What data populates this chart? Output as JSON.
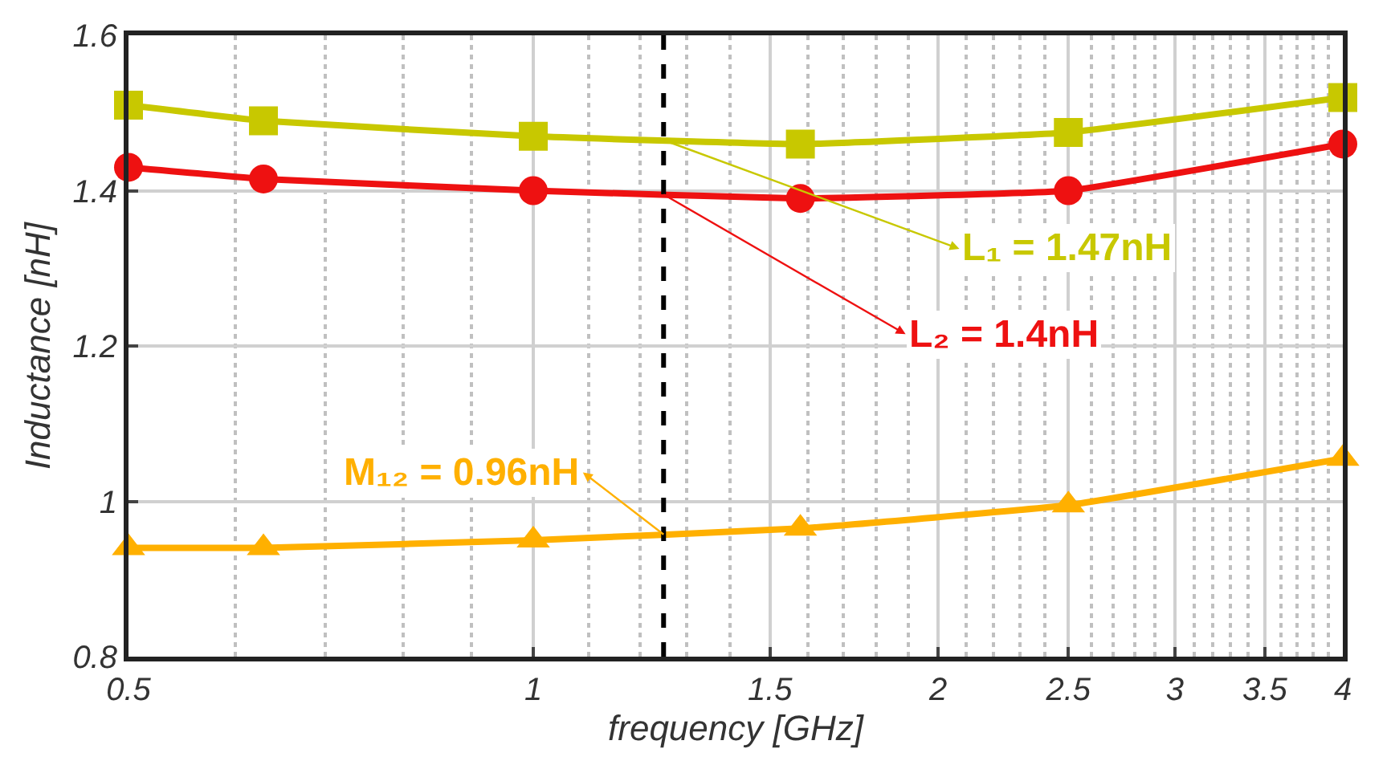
{
  "chart_data": {
    "type": "line",
    "xlabel": "frequency [GHz]",
    "ylabel": "Inductance [nH]",
    "log": "x",
    "x": [
      0.5,
      0.63,
      1,
      1.58,
      2.5,
      4
    ],
    "series": [
      {
        "color": "#c8c800",
        "marker": "square",
        "values": [
          1.51,
          1.49,
          1.47,
          1.46,
          1.475,
          1.52
        ]
      },
      {
        "color": "#ee1111",
        "marker": "circle",
        "values": [
          1.43,
          1.415,
          1.4,
          1.39,
          1.4,
          1.46
        ]
      },
      {
        "color": "#ffb000",
        "marker": "triangle",
        "values": [
          0.94,
          0.94,
          0.95,
          0.965,
          0.995,
          1.055
        ]
      }
    ],
    "xlim": [
      0.5,
      4
    ],
    "xticks": [
      0.5,
      1,
      1.5,
      2,
      2.5,
      3,
      3.5,
      4
    ],
    "ylim": [
      0.8,
      1.6
    ],
    "yticks": [
      0.8,
      1,
      1.2,
      1.4,
      1.6
    ],
    "grid": true,
    "line_style": "solid",
    "ref_lines": [
      {
        "axis": "x",
        "value": 1.25,
        "color": "#000000",
        "line_style": "dashed"
      }
    ],
    "annotations": [
      "L₁ = 1.47nH",
      "L₂ = 1.4nH",
      "M₁₂ = 0.96nH"
    ]
  }
}
